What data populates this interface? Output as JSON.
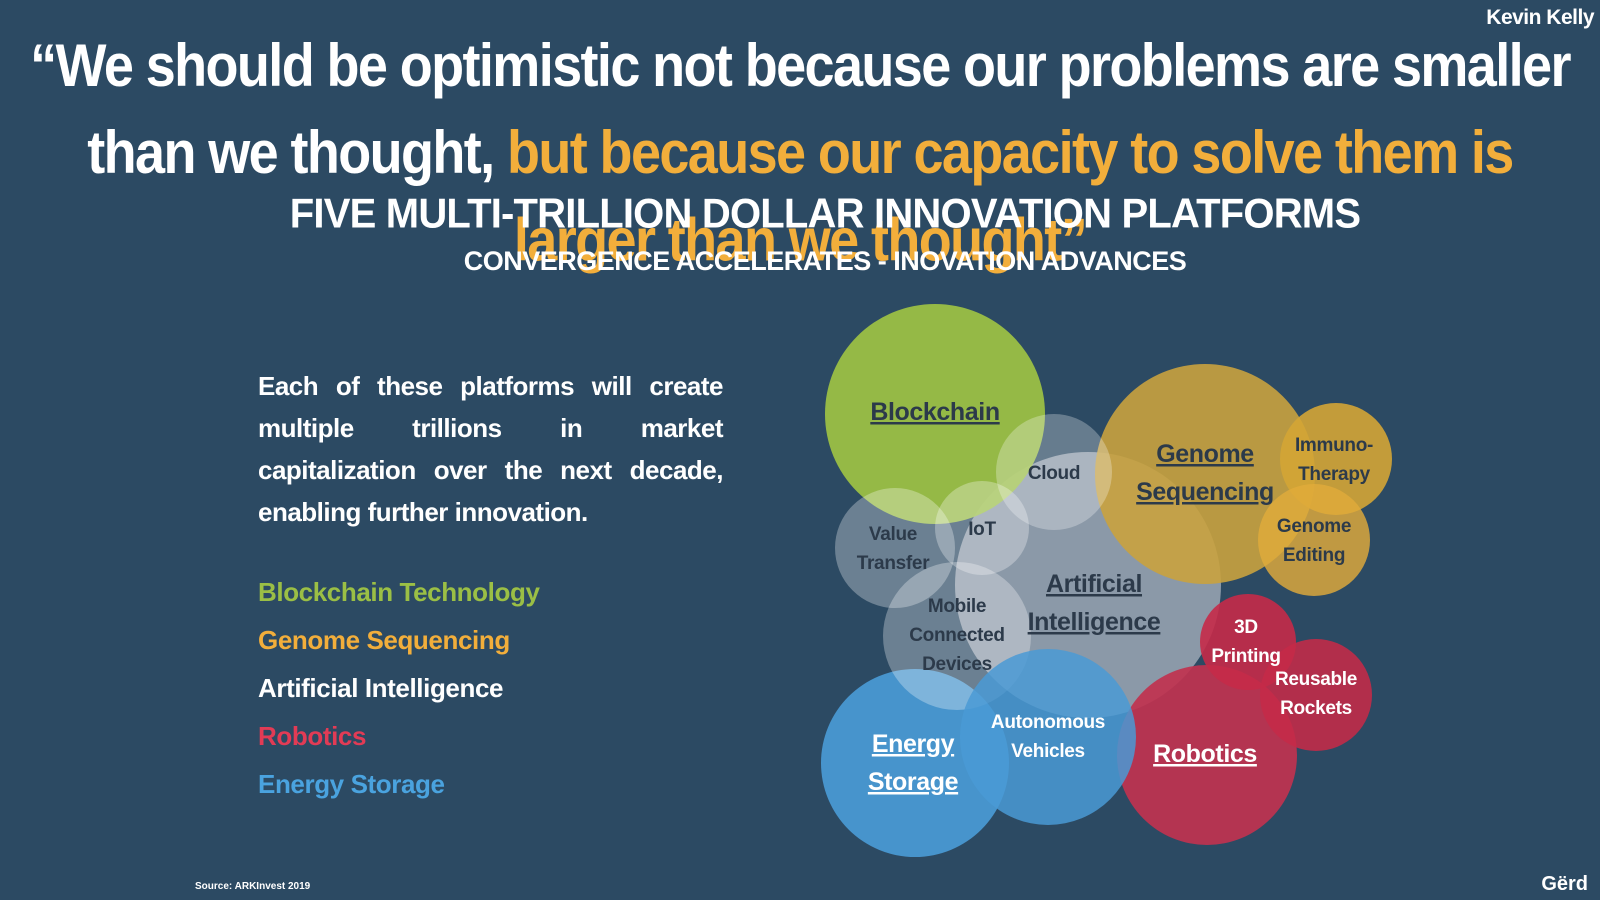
{
  "author": "Kevin Kelly",
  "quote": {
    "part1": "“We should be optimistic not because our problems are smaller than we thought, ",
    "part2": "but because our capacity to solve them is larger than we thought”"
  },
  "headline": "FIVE MULTI-TRILLION DOLLAR INNOVATION PLATFORMS",
  "subheadline": "CONVERGENCE ACCELERATES - INOVATION ADVANCES",
  "description": "Each of these platforms will create multiple trillions in market capitalization over the next decade, enabling further innovation.",
  "legend": [
    {
      "label": "Blockchain Technology",
      "color": "#9bbf45"
    },
    {
      "label": "Genome Sequencing",
      "color": "#f2ae3b"
    },
    {
      "label": "Artificial Intelligence",
      "color": "#ffffff"
    },
    {
      "label": "Robotics",
      "color": "#e23b55"
    },
    {
      "label": "Energy Storage",
      "color": "#4aa3df"
    }
  ],
  "diagram": {
    "platforms": {
      "blockchain": {
        "line1": "Blockchain",
        "color": "#9bbf45"
      },
      "genome": {
        "line1": "Genome",
        "line2": "Sequencing",
        "color": "#c9a23e"
      },
      "ai": {
        "line1": "Artificial",
        "line2": "Intelligence",
        "color": "#b8c0c8"
      },
      "robotics": {
        "line1": "Robotics",
        "color": "#c0324f"
      },
      "energy": {
        "line1": "Energy",
        "line2": "Storage",
        "color": "#4a9ad5"
      }
    },
    "subtopics": {
      "cloud": {
        "line1": "Cloud"
      },
      "iot": {
        "line1": "IoT"
      },
      "value_transfer": {
        "line1": "Value",
        "line2": "Transfer"
      },
      "mobile": {
        "line1": "Mobile",
        "line2": "Connected",
        "line3": "Devices"
      },
      "immuno": {
        "line1": "Immuno-",
        "line2": "Therapy"
      },
      "genome_editing": {
        "line1": "Genome",
        "line2": "Editing"
      },
      "printing": {
        "line1": "3D",
        "line2": "Printing"
      },
      "rockets": {
        "line1": "Reusable",
        "line2": "Rockets"
      },
      "autonomous": {
        "line1": "Autonomous",
        "line2": "Vehicles"
      }
    }
  },
  "source": "Source: ARKInvest 2019",
  "brand": "Gërd"
}
